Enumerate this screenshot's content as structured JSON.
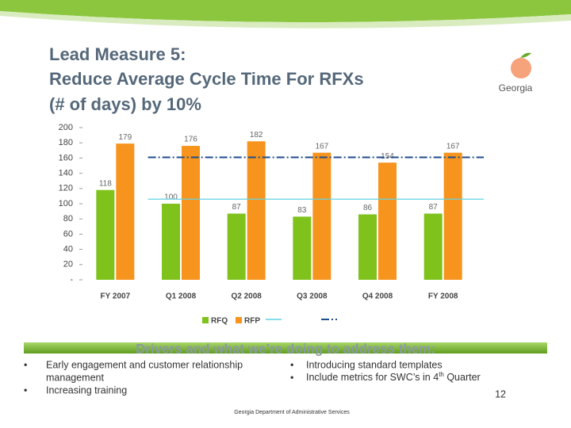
{
  "title_lines": [
    "Lead Measure 5:",
    "Reduce Average Cycle Time For RFXs",
    "(# of days) by 10%"
  ],
  "logo": "Georgia",
  "chart_data": {
    "type": "bar",
    "categories": [
      "FY 2007",
      "Q1 2008",
      "Q2 2008",
      "Q3 2008",
      "Q4 2008",
      "FY 2008"
    ],
    "series": [
      {
        "name": "RFQ",
        "color": "#7fc21c",
        "values": [
          118,
          100,
          87,
          83,
          86,
          87
        ]
      },
      {
        "name": "RFP",
        "color": "#f7941d",
        "values": [
          179,
          176,
          182,
          167,
          154,
          167
        ]
      }
    ],
    "reference_lines": [
      {
        "value": 106,
        "color": "#5fd3e4",
        "style": "solid"
      },
      {
        "value": 161,
        "color": "#1f4e8c",
        "style": "dashdot"
      }
    ],
    "ylim": [
      0,
      200
    ],
    "yticks": [
      {
        "value": 0,
        "label": "-"
      },
      20,
      40,
      60,
      80,
      100,
      120,
      140,
      160,
      180,
      200
    ]
  },
  "drivers": {
    "heading": "Drivers and what we’re doing to address them:",
    "left": [
      "Early engagement and customer relationship",
      "management",
      "Increasing training"
    ],
    "right": [
      "Introducing standard templates",
      "Include metrics for SWC’s in 4",
      "th",
      " Quarter"
    ]
  },
  "page_number": "12",
  "footer": "Georgia Department of Administrative Services"
}
